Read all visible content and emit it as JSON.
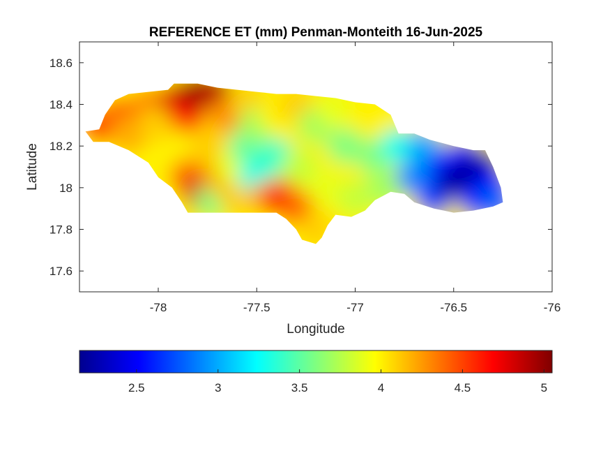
{
  "chart_data": {
    "type": "heatmap",
    "title": "REFERENCE ET (mm) Penman-Monteith 16-Jun-2025",
    "xlabel": "Longitude",
    "ylabel": "Latitude",
    "xlim": [
      -78.4,
      -76
    ],
    "ylim": [
      17.5,
      18.7
    ],
    "x_ticks": [
      -78,
      -77.5,
      -77,
      -76.5,
      -76
    ],
    "x_tick_labels": [
      "-78",
      "-77.5",
      "-77",
      "-76.5",
      "-76"
    ],
    "y_ticks": [
      17.6,
      17.8,
      18,
      18.2,
      18.4,
      18.6
    ],
    "y_tick_labels": [
      "17.6",
      "17.8",
      "18",
      "18.2",
      "18.4",
      "18.6"
    ],
    "colormap": "jet",
    "colorbar": {
      "location": "bottom",
      "range": [
        2.15,
        5.05
      ],
      "ticks": [
        2.5,
        3,
        3.5,
        4,
        4.5,
        5
      ],
      "tick_labels": [
        "2.5",
        "3",
        "3.5",
        "4",
        "4.5",
        "5"
      ]
    },
    "region_outline": [
      [
        -78.37,
        18.27
      ],
      [
        -78.3,
        18.28
      ],
      [
        -78.27,
        18.35
      ],
      [
        -78.22,
        18.42
      ],
      [
        -78.15,
        18.45
      ],
      [
        -78.05,
        18.46
      ],
      [
        -77.95,
        18.47
      ],
      [
        -77.92,
        18.5
      ],
      [
        -77.8,
        18.5
      ],
      [
        -77.7,
        18.48
      ],
      [
        -77.6,
        18.47
      ],
      [
        -77.5,
        18.46
      ],
      [
        -77.4,
        18.45
      ],
      [
        -77.3,
        18.45
      ],
      [
        -77.2,
        18.44
      ],
      [
        -77.1,
        18.43
      ],
      [
        -77.0,
        18.41
      ],
      [
        -76.9,
        18.4
      ],
      [
        -76.82,
        18.35
      ],
      [
        -76.78,
        18.26
      ],
      [
        -76.7,
        18.26
      ],
      [
        -76.62,
        18.23
      ],
      [
        -76.5,
        18.2
      ],
      [
        -76.4,
        18.18
      ],
      [
        -76.34,
        18.18
      ],
      [
        -76.3,
        18.1
      ],
      [
        -76.26,
        18.0
      ],
      [
        -76.25,
        17.93
      ],
      [
        -76.3,
        17.91
      ],
      [
        -76.4,
        17.89
      ],
      [
        -76.5,
        17.88
      ],
      [
        -76.6,
        17.9
      ],
      [
        -76.7,
        17.93
      ],
      [
        -76.75,
        17.97
      ],
      [
        -76.82,
        17.98
      ],
      [
        -76.9,
        17.94
      ],
      [
        -76.95,
        17.89
      ],
      [
        -77.02,
        17.86
      ],
      [
        -77.1,
        17.87
      ],
      [
        -77.14,
        17.82
      ],
      [
        -77.17,
        17.76
      ],
      [
        -77.2,
        17.73
      ],
      [
        -77.27,
        17.75
      ],
      [
        -77.3,
        17.8
      ],
      [
        -77.35,
        17.85
      ],
      [
        -77.4,
        17.88
      ],
      [
        -77.55,
        17.88
      ],
      [
        -77.7,
        17.88
      ],
      [
        -77.85,
        17.88
      ],
      [
        -77.88,
        17.93
      ],
      [
        -77.93,
        18.0
      ],
      [
        -78.0,
        18.05
      ],
      [
        -78.05,
        18.12
      ],
      [
        -78.15,
        18.18
      ],
      [
        -78.25,
        18.22
      ],
      [
        -78.33,
        18.22
      ],
      [
        -78.37,
        18.27
      ]
    ],
    "values": [
      {
        "lon": -78.3,
        "lat": 18.3,
        "et": 4.5
      },
      {
        "lon": -78.2,
        "lat": 18.35,
        "et": 4.4
      },
      {
        "lon": -78.15,
        "lat": 18.25,
        "et": 4.2
      },
      {
        "lon": -78.05,
        "lat": 18.4,
        "et": 4.3
      },
      {
        "lon": -78.0,
        "lat": 18.3,
        "et": 4.1
      },
      {
        "lon": -77.95,
        "lat": 18.15,
        "et": 4.0
      },
      {
        "lon": -77.9,
        "lat": 18.42,
        "et": 4.8
      },
      {
        "lon": -77.85,
        "lat": 18.35,
        "et": 4.6
      },
      {
        "lon": -77.85,
        "lat": 18.05,
        "et": 4.4
      },
      {
        "lon": -77.8,
        "lat": 18.46,
        "et": 4.95
      },
      {
        "lon": -77.78,
        "lat": 17.97,
        "et": 4.8
      },
      {
        "lon": -77.75,
        "lat": 18.2,
        "et": 4.1
      },
      {
        "lon": -77.72,
        "lat": 18.46,
        "et": 4.9
      },
      {
        "lon": -77.72,
        "lat": 17.94,
        "et": 3.6
      },
      {
        "lon": -77.68,
        "lat": 18.05,
        "et": 4.2
      },
      {
        "lon": -77.65,
        "lat": 18.35,
        "et": 4.3
      },
      {
        "lon": -77.62,
        "lat": 18.1,
        "et": 3.9
      },
      {
        "lon": -77.6,
        "lat": 17.95,
        "et": 4.1
      },
      {
        "lon": -77.55,
        "lat": 18.42,
        "et": 4.1
      },
      {
        "lon": -77.55,
        "lat": 18.2,
        "et": 3.5
      },
      {
        "lon": -77.5,
        "lat": 18.3,
        "et": 3.7
      },
      {
        "lon": -77.5,
        "lat": 18.05,
        "et": 3.3
      },
      {
        "lon": -77.45,
        "lat": 17.95,
        "et": 4.2
      },
      {
        "lon": -77.4,
        "lat": 18.35,
        "et": 4.0
      },
      {
        "lon": -77.4,
        "lat": 18.15,
        "et": 3.4
      },
      {
        "lon": -77.38,
        "lat": 17.95,
        "et": 4.7
      },
      {
        "lon": -77.3,
        "lat": 18.4,
        "et": 4.1
      },
      {
        "lon": -77.3,
        "lat": 17.9,
        "et": 4.4
      },
      {
        "lon": -77.28,
        "lat": 18.1,
        "et": 3.8
      },
      {
        "lon": -77.2,
        "lat": 17.8,
        "et": 4.1
      },
      {
        "lon": -77.2,
        "lat": 18.3,
        "et": 3.7
      },
      {
        "lon": -77.15,
        "lat": 18.0,
        "et": 3.9
      },
      {
        "lon": -77.1,
        "lat": 18.38,
        "et": 3.9
      },
      {
        "lon": -77.05,
        "lat": 18.2,
        "et": 3.6
      },
      {
        "lon": -77.0,
        "lat": 17.95,
        "et": 3.8
      },
      {
        "lon": -76.95,
        "lat": 18.35,
        "et": 4.0
      },
      {
        "lon": -76.9,
        "lat": 18.15,
        "et": 3.6
      },
      {
        "lon": -76.85,
        "lat": 18.0,
        "et": 3.7
      },
      {
        "lon": -76.78,
        "lat": 18.2,
        "et": 3.3
      },
      {
        "lon": -76.7,
        "lat": 18.05,
        "et": 2.9
      },
      {
        "lon": -76.65,
        "lat": 18.2,
        "et": 3.0
      },
      {
        "lon": -76.6,
        "lat": 17.95,
        "et": 2.7
      },
      {
        "lon": -76.55,
        "lat": 18.1,
        "et": 2.6
      },
      {
        "lon": -76.5,
        "lat": 18.02,
        "et": 2.3
      },
      {
        "lon": -76.45,
        "lat": 18.15,
        "et": 2.5
      },
      {
        "lon": -76.42,
        "lat": 18.05,
        "et": 2.2
      },
      {
        "lon": -76.38,
        "lat": 17.94,
        "et": 2.6
      },
      {
        "lon": -76.35,
        "lat": 18.1,
        "et": 2.3
      },
      {
        "lon": -76.3,
        "lat": 18.0,
        "et": 2.5
      },
      {
        "lon": -76.28,
        "lat": 17.92,
        "et": 2.8
      }
    ]
  }
}
